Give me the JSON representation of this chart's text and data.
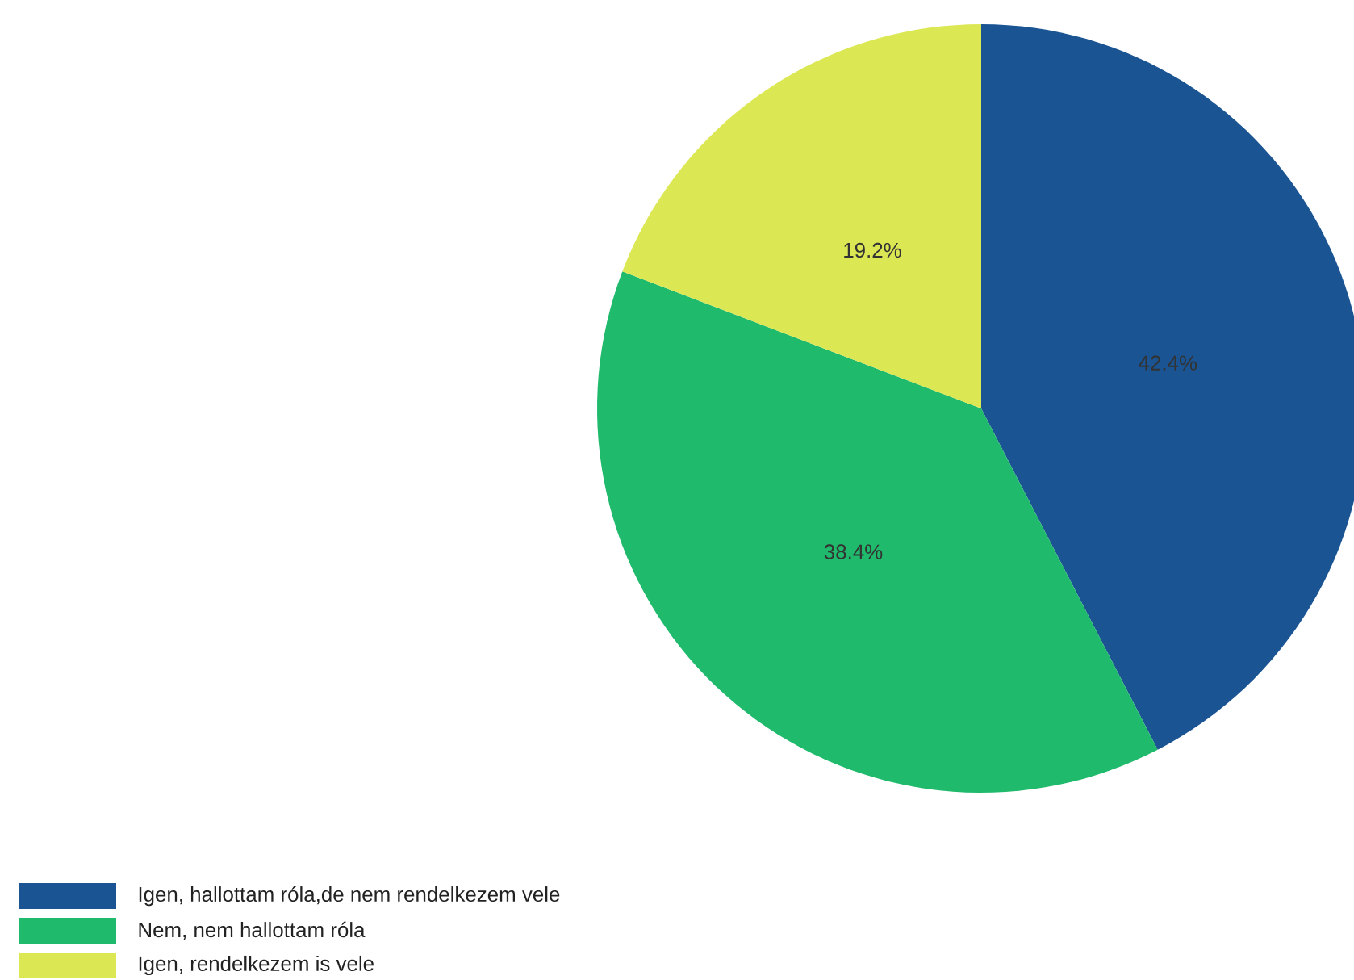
{
  "chart_data": {
    "type": "pie",
    "categories": [
      "Igen, hallottam róla,de nem rendelkezem vele",
      "Nem, nem hallottam róla",
      "Igen, rendelkezem is vele"
    ],
    "values": [
      42.4,
      38.4,
      19.2
    ],
    "value_labels": [
      "42.4%",
      "38.4%",
      "19.2%"
    ],
    "colors": [
      "#1a5493",
      "#1fba6c",
      "#dbe854"
    ],
    "legend": "bottom left"
  }
}
